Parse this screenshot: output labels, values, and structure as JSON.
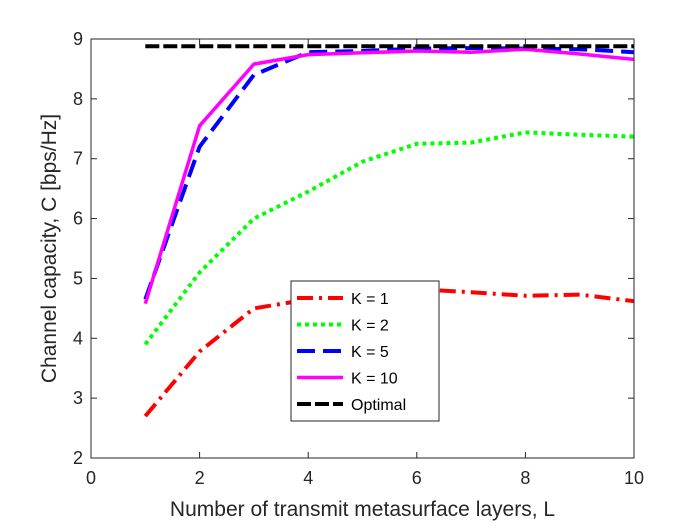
{
  "chart_data": {
    "type": "line",
    "title": "",
    "xlabel": "Number of transmit metasurface layers, L",
    "ylabel": "Channel capacity, C [bps/Hz]",
    "xlim": [
      0,
      10
    ],
    "ylim": [
      2,
      9
    ],
    "xticks": [
      0,
      2,
      4,
      6,
      8,
      10
    ],
    "yticks": [
      2,
      3,
      4,
      5,
      6,
      7,
      8,
      9
    ],
    "grid": false,
    "legend_position": "lower-center",
    "x": [
      1,
      2,
      3,
      4,
      5,
      6,
      7,
      8,
      9,
      10
    ],
    "series": [
      {
        "name": "K = 1",
        "color": "#ff0000",
        "dash": "dashdot",
        "values": [
          2.7,
          3.78,
          4.5,
          4.65,
          4.78,
          4.82,
          4.77,
          4.71,
          4.73,
          4.62
        ]
      },
      {
        "name": "K = 2",
        "color": "#00ff00",
        "dash": "dotted",
        "values": [
          3.9,
          5.1,
          6.0,
          6.45,
          6.95,
          7.25,
          7.27,
          7.44,
          7.4,
          7.37
        ]
      },
      {
        "name": "K = 5",
        "color": "#0000ff",
        "dash": "dashed",
        "values": [
          4.65,
          7.2,
          8.4,
          8.78,
          8.8,
          8.84,
          8.85,
          8.84,
          8.83,
          8.78
        ]
      },
      {
        "name": "K = 10",
        "color": "#ff00ff",
        "dash": "solid",
        "values": [
          4.58,
          7.55,
          8.58,
          8.74,
          8.77,
          8.8,
          8.78,
          8.83,
          8.75,
          8.66
        ]
      },
      {
        "name": "Optimal",
        "color": "#000000",
        "dash": "dashed",
        "values": [
          8.88,
          8.88,
          8.88,
          8.88,
          8.88,
          8.88,
          8.88,
          8.88,
          8.88,
          8.88
        ]
      }
    ]
  }
}
